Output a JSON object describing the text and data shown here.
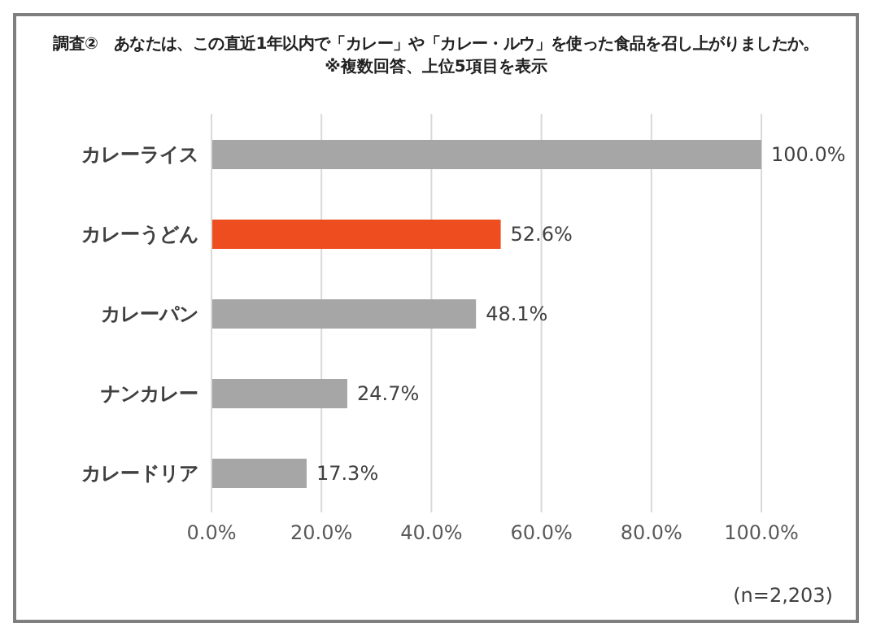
{
  "chart_data": {
    "type": "bar",
    "orientation": "horizontal",
    "title": "調査②　あなたは、この直近1年以内で「カレー」や「カレー・ルウ」を使った食品を召し上がりましたか。",
    "subtitle": "※複数回答、上位5項目を表示",
    "categories": [
      "カレーライス",
      "カレーうどん",
      "カレーパン",
      "ナンカレー",
      "カレードリア"
    ],
    "values": [
      100,
      52.6,
      48.1,
      24.7,
      17.3
    ],
    "colors": [
      "#a6a6a6",
      "#ee4d1f",
      "#a6a6a6",
      "#a6a6a6",
      "#a6a6a6"
    ],
    "value_labels": [
      "100.0%",
      "52.6%",
      "48.1%",
      "24.7%",
      "17.3%"
    ],
    "xlim": [
      0,
      100
    ],
    "xticks": [
      {
        "value": 0,
        "label": "0.0%"
      },
      {
        "value": 20,
        "label": "20.0%"
      },
      {
        "value": 40,
        "label": "40.0%"
      },
      {
        "value": 60,
        "label": "60.0%"
      },
      {
        "value": 80,
        "label": "80.0%"
      },
      {
        "value": 100,
        "label": "100.0%"
      }
    ],
    "grid": "x",
    "legend": false,
    "annotations": [
      "(n=2,203)"
    ]
  }
}
